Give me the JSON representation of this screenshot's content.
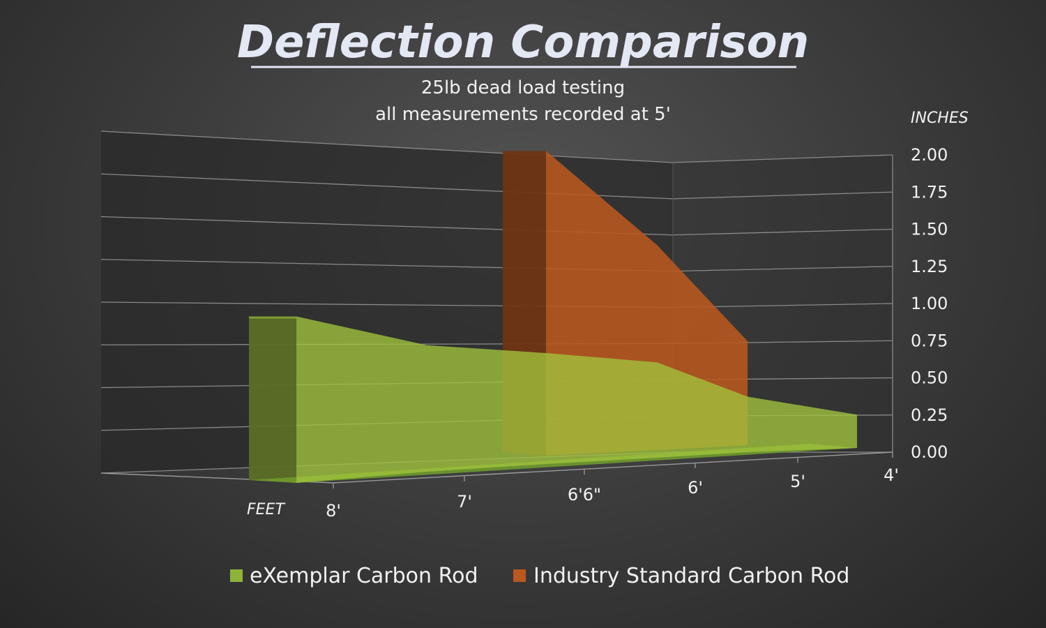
{
  "chart_data": {
    "type": "area",
    "title": "Deflection Comparison",
    "subtitle_lines": [
      "25lb dead load testing",
      "all measurements recorded at 5'"
    ],
    "ylabel": "INCHES",
    "xlabel": "FEET",
    "ylim": [
      0,
      2.0
    ],
    "y_ticks": [
      "2.00",
      "1.75",
      "1.50",
      "1.25",
      "1.00",
      "0.75",
      "0.50",
      "0.25",
      "0.00"
    ],
    "x_ticks": [
      "8'",
      "7'",
      "6'6\"",
      "6'",
      "5'",
      "4'"
    ],
    "series": [
      {
        "name": "eXemplar Carbon Rod",
        "color": "#8db33a",
        "x": [
          "8'",
          "7'",
          "6'6\"",
          "6'",
          "5'",
          "4'"
        ],
        "values": [
          0.75,
          0.57,
          0.5,
          0.43,
          0.25,
          0.15
        ]
      },
      {
        "name": "Industry Standard Carbon Rod",
        "color": "#b9581f",
        "x": [
          "6'6\"",
          "6'",
          "5'"
        ],
        "values": [
          2.05,
          1.38,
          0.7
        ]
      }
    ],
    "legend_position": "bottom",
    "grid": true
  }
}
